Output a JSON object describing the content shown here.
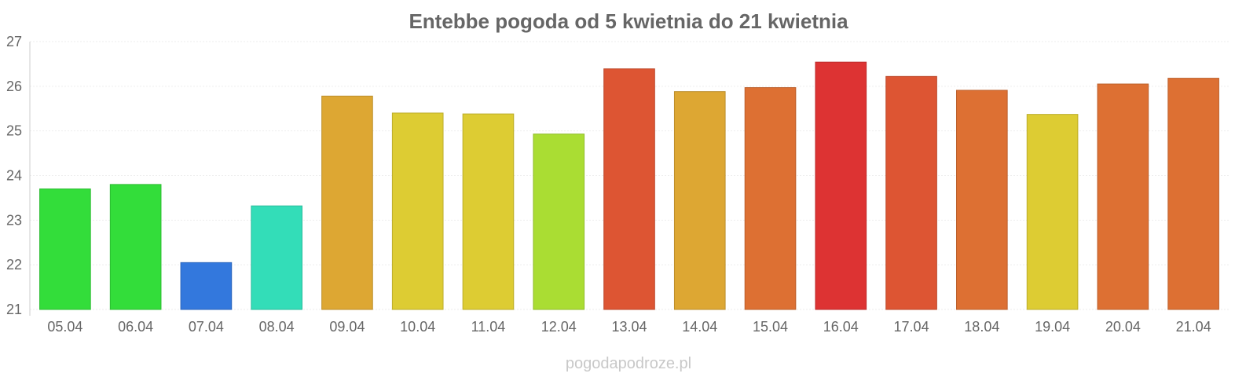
{
  "chart_data": {
    "type": "bar",
    "title": "Entebbe pogoda od 5 kwietnia do 21 kwietnia",
    "xlabel": "",
    "ylabel": "",
    "ylim": [
      21,
      27
    ],
    "yticks": [
      21,
      22,
      23,
      24,
      25,
      26,
      27
    ],
    "grid": true,
    "legend": "none",
    "categories": [
      "05.04",
      "06.04",
      "07.04",
      "08.04",
      "09.04",
      "10.04",
      "11.04",
      "12.04",
      "13.04",
      "14.04",
      "15.04",
      "16.04",
      "17.04",
      "18.04",
      "19.04",
      "20.04",
      "21.04"
    ],
    "values": [
      23.7,
      23.8,
      22.05,
      23.32,
      25.78,
      25.4,
      25.38,
      24.93,
      26.39,
      25.88,
      25.97,
      26.54,
      26.22,
      25.91,
      25.37,
      26.05,
      26.18
    ],
    "colors": [
      "#33dd3a",
      "#33dd3a",
      "#3378dd",
      "#33ddb8",
      "#dda733",
      "#ddcc33",
      "#ddcc33",
      "#aadd33",
      "#dd5533",
      "#dda733",
      "#dd7033",
      "#dd3333",
      "#dd5533",
      "#dd7033",
      "#ddcc33",
      "#dd7033",
      "#dd7033"
    ]
  },
  "watermark": "pogodapodroze.pl"
}
